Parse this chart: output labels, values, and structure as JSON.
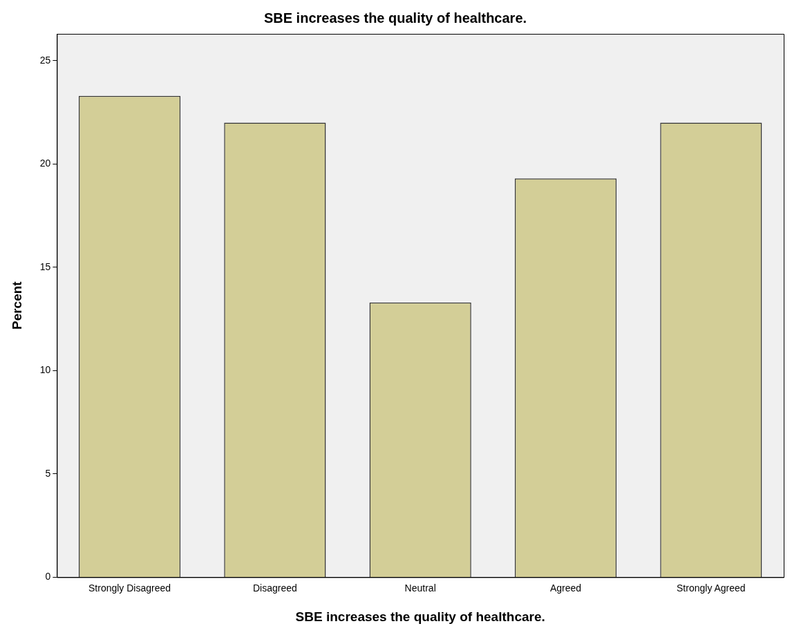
{
  "chart_data": {
    "type": "bar",
    "title": "SBE increases the quality of healthcare.",
    "xlabel": "SBE increases the quality of healthcare.",
    "ylabel": "Percent",
    "categories": [
      "Strongly Disagreed",
      "Disagreed",
      "Neutral",
      "Agreed",
      "Strongly Agreed"
    ],
    "values": [
      23.3,
      22.0,
      13.3,
      19.3,
      22.0
    ],
    "color": "#d3ce97",
    "ylim": [
      0,
      26.3
    ],
    "yticks": [
      0,
      5,
      10,
      15,
      20,
      25
    ],
    "grid": false,
    "legend": false
  }
}
